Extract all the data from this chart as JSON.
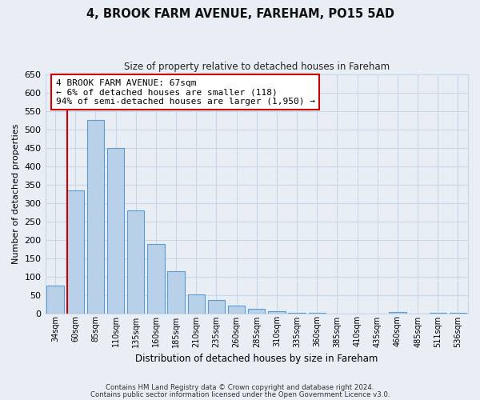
{
  "title": "4, BROOK FARM AVENUE, FAREHAM, PO15 5AD",
  "subtitle": "Size of property relative to detached houses in Fareham",
  "xlabel": "Distribution of detached houses by size in Fareham",
  "ylabel": "Number of detached properties",
  "bin_labels": [
    "34sqm",
    "60sqm",
    "85sqm",
    "110sqm",
    "135sqm",
    "160sqm",
    "185sqm",
    "210sqm",
    "235sqm",
    "260sqm",
    "285sqm",
    "310sqm",
    "335sqm",
    "360sqm",
    "385sqm",
    "410sqm",
    "435sqm",
    "460sqm",
    "485sqm",
    "511sqm",
    "536sqm"
  ],
  "bar_values": [
    75,
    335,
    525,
    450,
    280,
    188,
    115,
    52,
    37,
    20,
    13,
    5,
    2,
    1,
    0,
    0,
    0,
    3,
    0,
    2,
    2
  ],
  "bar_color": "#b8d0e8",
  "bar_edge_color": "#5b9bd5",
  "vline_x_idx": 1,
  "vline_color": "#cc0000",
  "annotation_text": "4 BROOK FARM AVENUE: 67sqm\n← 6% of detached houses are smaller (118)\n94% of semi-detached houses are larger (1,950) →",
  "annotation_box_color": "#ffffff",
  "annotation_box_edge": "#cc0000",
  "ylim": [
    0,
    650
  ],
  "yticks": [
    0,
    50,
    100,
    150,
    200,
    250,
    300,
    350,
    400,
    450,
    500,
    550,
    600,
    650
  ],
  "footer_line1": "Contains HM Land Registry data © Crown copyright and database right 2024.",
  "footer_line2": "Contains public sector information licensed under the Open Government Licence v3.0.",
  "bg_color": "#e8eef4",
  "plot_bg_color": "#e8eef4",
  "grid_color": "#c8d8e8"
}
